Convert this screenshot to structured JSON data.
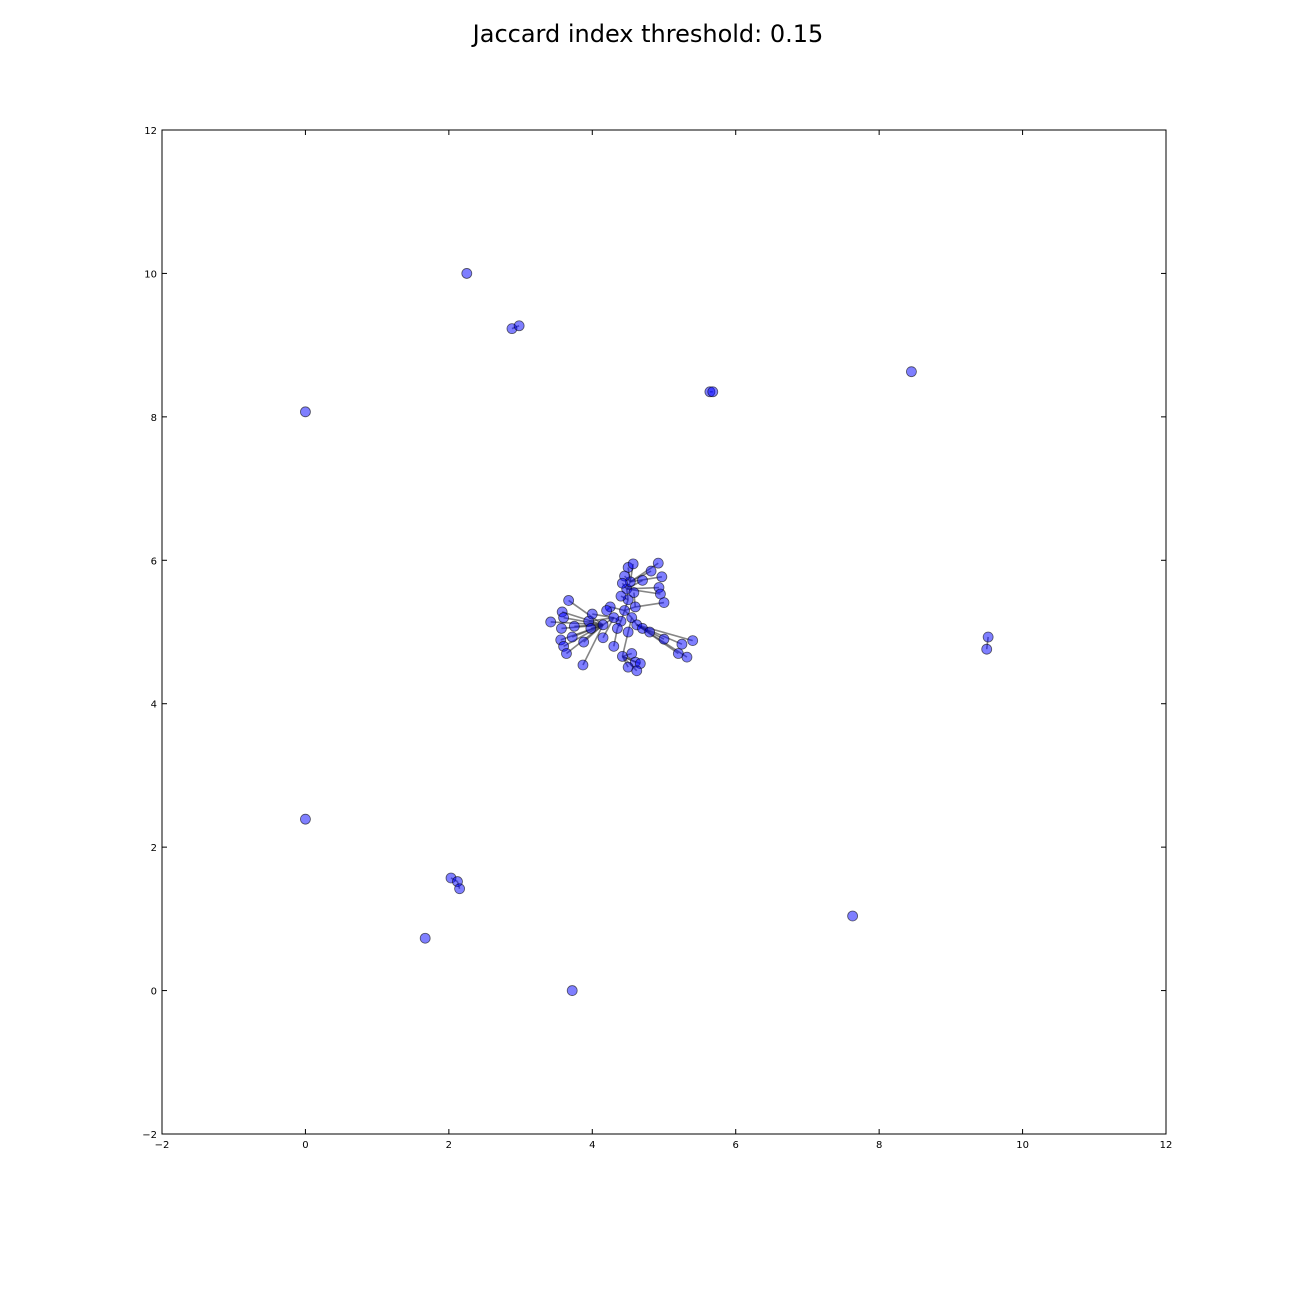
{
  "chart_data": {
    "type": "scatter",
    "title": "Jaccard index threshold: 0.15",
    "xlabel": "",
    "ylabel": "",
    "xlim": [
      -2,
      12
    ],
    "ylim": [
      -2,
      12
    ],
    "xticks": [
      -2,
      0,
      2,
      4,
      6,
      8,
      10,
      12
    ],
    "yticks": [
      -2,
      0,
      2,
      4,
      6,
      8,
      10,
      12
    ],
    "grid": false,
    "colors": {
      "node": "#0000ff",
      "node_edge": "#000000",
      "edge": "#333333",
      "axes": "#000000"
    },
    "nodes": [
      {
        "x": 2.25,
        "y": 10.0
      },
      {
        "x": 2.88,
        "y": 9.23
      },
      {
        "x": 2.98,
        "y": 9.27
      },
      {
        "x": 5.64,
        "y": 8.35
      },
      {
        "x": 5.68,
        "y": 8.35
      },
      {
        "x": 8.45,
        "y": 8.63
      },
      {
        "x": 0.0,
        "y": 8.07
      },
      {
        "x": 9.52,
        "y": 4.93
      },
      {
        "x": 9.5,
        "y": 4.76
      },
      {
        "x": 0.0,
        "y": 2.39
      },
      {
        "x": 2.03,
        "y": 1.57
      },
      {
        "x": 2.12,
        "y": 1.52
      },
      {
        "x": 2.15,
        "y": 1.42
      },
      {
        "x": 1.67,
        "y": 0.73
      },
      {
        "x": 3.72,
        "y": 0.0
      },
      {
        "x": 7.63,
        "y": 1.04
      },
      {
        "x": 4.45,
        "y": 5.3
      },
      {
        "x": 4.5,
        "y": 5.45
      },
      {
        "x": 4.55,
        "y": 5.2
      },
      {
        "x": 4.4,
        "y": 5.15
      },
      {
        "x": 4.6,
        "y": 5.35
      },
      {
        "x": 4.48,
        "y": 5.6
      },
      {
        "x": 4.53,
        "y": 5.7
      },
      {
        "x": 4.35,
        "y": 5.05
      },
      {
        "x": 4.62,
        "y": 5.1
      },
      {
        "x": 4.25,
        "y": 5.35
      },
      {
        "x": 4.3,
        "y": 5.2
      },
      {
        "x": 4.5,
        "y": 5.0
      },
      {
        "x": 4.7,
        "y": 5.05
      },
      {
        "x": 4.15,
        "y": 5.1
      },
      {
        "x": 4.2,
        "y": 5.3
      },
      {
        "x": 4.4,
        "y": 5.5
      },
      {
        "x": 4.58,
        "y": 5.55
      },
      {
        "x": 4.5,
        "y": 5.9
      },
      {
        "x": 4.57,
        "y": 5.95
      },
      {
        "x": 4.92,
        "y": 5.96
      },
      {
        "x": 4.82,
        "y": 5.85
      },
      {
        "x": 4.97,
        "y": 5.77
      },
      {
        "x": 4.7,
        "y": 5.72
      },
      {
        "x": 4.45,
        "y": 5.78
      },
      {
        "x": 4.42,
        "y": 5.68
      },
      {
        "x": 4.93,
        "y": 5.62
      },
      {
        "x": 4.95,
        "y": 5.53
      },
      {
        "x": 5.0,
        "y": 5.41
      },
      {
        "x": 3.67,
        "y": 5.44
      },
      {
        "x": 3.58,
        "y": 5.28
      },
      {
        "x": 3.6,
        "y": 5.2
      },
      {
        "x": 3.42,
        "y": 5.14
      },
      {
        "x": 3.57,
        "y": 5.05
      },
      {
        "x": 3.75,
        "y": 5.08
      },
      {
        "x": 3.95,
        "y": 5.15
      },
      {
        "x": 4.0,
        "y": 5.25
      },
      {
        "x": 3.98,
        "y": 5.05
      },
      {
        "x": 3.56,
        "y": 4.89
      },
      {
        "x": 3.72,
        "y": 4.93
      },
      {
        "x": 3.88,
        "y": 4.86
      },
      {
        "x": 3.6,
        "y": 4.8
      },
      {
        "x": 3.64,
        "y": 4.7
      },
      {
        "x": 3.87,
        "y": 4.54
      },
      {
        "x": 4.15,
        "y": 4.92
      },
      {
        "x": 4.3,
        "y": 4.8
      },
      {
        "x": 4.42,
        "y": 4.66
      },
      {
        "x": 4.55,
        "y": 4.7
      },
      {
        "x": 4.6,
        "y": 4.58
      },
      {
        "x": 4.5,
        "y": 4.51
      },
      {
        "x": 4.67,
        "y": 4.56
      },
      {
        "x": 4.62,
        "y": 4.46
      },
      {
        "x": 4.8,
        "y": 5.0
      },
      {
        "x": 5.0,
        "y": 4.9
      },
      {
        "x": 5.25,
        "y": 4.83
      },
      {
        "x": 5.4,
        "y": 4.88
      },
      {
        "x": 5.2,
        "y": 4.7
      },
      {
        "x": 5.32,
        "y": 4.65
      }
    ],
    "edges": [
      [
        1,
        2
      ],
      [
        3,
        4
      ],
      [
        7,
        8
      ],
      [
        10,
        11
      ],
      [
        11,
        12
      ],
      [
        16,
        17
      ],
      [
        16,
        18
      ],
      [
        16,
        19
      ],
      [
        16,
        20
      ],
      [
        17,
        21
      ],
      [
        21,
        22
      ],
      [
        19,
        23
      ],
      [
        18,
        24
      ],
      [
        16,
        25
      ],
      [
        19,
        26
      ],
      [
        18,
        27
      ],
      [
        24,
        28
      ],
      [
        26,
        29
      ],
      [
        25,
        30
      ],
      [
        17,
        31
      ],
      [
        20,
        32
      ],
      [
        22,
        33
      ],
      [
        22,
        34
      ],
      [
        22,
        35
      ],
      [
        22,
        36
      ],
      [
        22,
        37
      ],
      [
        21,
        38
      ],
      [
        22,
        39
      ],
      [
        21,
        40
      ],
      [
        21,
        41
      ],
      [
        21,
        42
      ],
      [
        20,
        43
      ],
      [
        29,
        44
      ],
      [
        29,
        45
      ],
      [
        29,
        46
      ],
      [
        29,
        47
      ],
      [
        29,
        48
      ],
      [
        29,
        49
      ],
      [
        26,
        50
      ],
      [
        26,
        51
      ],
      [
        29,
        52
      ],
      [
        29,
        53
      ],
      [
        29,
        54
      ],
      [
        29,
        55
      ],
      [
        29,
        56
      ],
      [
        29,
        57
      ],
      [
        29,
        58
      ],
      [
        26,
        59
      ],
      [
        23,
        60
      ],
      [
        27,
        61
      ],
      [
        61,
        62
      ],
      [
        61,
        63
      ],
      [
        61,
        64
      ],
      [
        61,
        65
      ],
      [
        61,
        66
      ],
      [
        24,
        67
      ],
      [
        24,
        68
      ],
      [
        24,
        69
      ],
      [
        24,
        70
      ],
      [
        24,
        71
      ],
      [
        24,
        72
      ]
    ]
  }
}
